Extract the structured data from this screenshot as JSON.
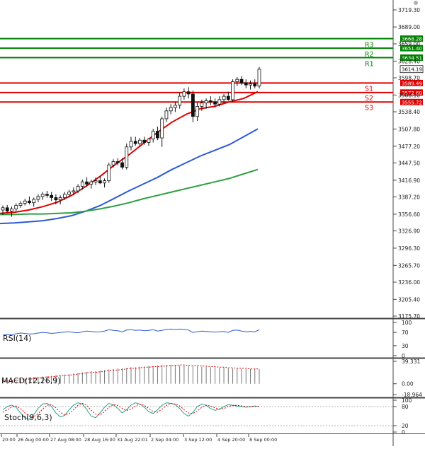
{
  "chart_data": [
    {
      "type": "candlestick",
      "panel": "price",
      "y_axis_ticks": [
        "3719.30",
        "3689.00",
        "3659.00",
        "3628.40",
        "3598.70",
        "3568.10",
        "3538.40",
        "3507.80",
        "3477.20",
        "3447.50",
        "3416.90",
        "3387.20",
        "3356.60",
        "3326.90",
        "3296.30",
        "3265.70",
        "3236.00",
        "3205.40",
        "3175.70"
      ],
      "ylim": [
        3175.7,
        3719.3
      ],
      "x_tick_labels": [
        "20:00",
        "26 Aug 00:00",
        "27 Aug 08:00",
        "28 Aug 16:00",
        "31 Aug 22:01",
        "2 Sep 04:00",
        "3 Sep 12:00",
        "4 Sep 20:00",
        "8 Sep 00:00"
      ],
      "current_price": "3614.19",
      "levels": [
        {
          "name": "R3",
          "value": 3668.28,
          "label": "3668.28",
          "color": "#008000"
        },
        {
          "name": "R2",
          "value": 3651.4,
          "label": "3651.40",
          "color": "#008000"
        },
        {
          "name": "R1",
          "value": 3634.51,
          "label": "3634.51",
          "color": "#008000"
        },
        {
          "name": "S1",
          "value": 3589.49,
          "label": "3589.49",
          "color": "#e00000"
        },
        {
          "name": "S2",
          "value": 3572.6,
          "label": "3572.60",
          "color": "#e00000"
        },
        {
          "name": "S3",
          "value": 3555.72,
          "label": "3555.72",
          "color": "#e00000"
        }
      ],
      "candles": [
        [
          3364,
          3372,
          3355,
          3368
        ],
        [
          3368,
          3373,
          3360,
          3362
        ],
        [
          3362,
          3370,
          3352,
          3366
        ],
        [
          3366,
          3376,
          3362,
          3372
        ],
        [
          3372,
          3380,
          3368,
          3376
        ],
        [
          3376,
          3384,
          3372,
          3380
        ],
        [
          3380,
          3388,
          3374,
          3377
        ],
        [
          3377,
          3386,
          3370,
          3383
        ],
        [
          3383,
          3392,
          3378,
          3388
        ],
        [
          3388,
          3396,
          3382,
          3392
        ],
        [
          3392,
          3398,
          3386,
          3390
        ],
        [
          3390,
          3396,
          3380,
          3386
        ],
        [
          3386,
          3392,
          3374,
          3382
        ],
        [
          3382,
          3390,
          3374,
          3386
        ],
        [
          3386,
          3396,
          3382,
          3392
        ],
        [
          3392,
          3400,
          3386,
          3396
        ],
        [
          3396,
          3404,
          3390,
          3398
        ],
        [
          3398,
          3410,
          3394,
          3406
        ],
        [
          3406,
          3418,
          3400,
          3414
        ],
        [
          3414,
          3422,
          3406,
          3410
        ],
        [
          3410,
          3418,
          3402,
          3414
        ],
        [
          3414,
          3422,
          3408,
          3416
        ],
        [
          3416,
          3424,
          3410,
          3412
        ],
        [
          3412,
          3420,
          3404,
          3416
        ],
        [
          3416,
          3448,
          3412,
          3444
        ],
        [
          3444,
          3454,
          3440,
          3450
        ],
        [
          3450,
          3456,
          3444,
          3448
        ],
        [
          3448,
          3456,
          3436,
          3440
        ],
        [
          3440,
          3482,
          3436,
          3476
        ],
        [
          3476,
          3494,
          3470,
          3486
        ],
        [
          3486,
          3494,
          3478,
          3482
        ],
        [
          3482,
          3492,
          3476,
          3488
        ],
        [
          3488,
          3494,
          3480,
          3484
        ],
        [
          3484,
          3492,
          3478,
          3490
        ],
        [
          3490,
          3508,
          3484,
          3504
        ],
        [
          3504,
          3512,
          3488,
          3492
        ],
        [
          3492,
          3530,
          3476,
          3526
        ],
        [
          3526,
          3546,
          3520,
          3540
        ],
        [
          3540,
          3552,
          3534,
          3546
        ],
        [
          3546,
          3556,
          3538,
          3550
        ],
        [
          3550,
          3572,
          3544,
          3566
        ],
        [
          3566,
          3580,
          3560,
          3574
        ],
        [
          3574,
          3582,
          3562,
          3570
        ],
        [
          3570,
          3576,
          3520,
          3530
        ],
        [
          3530,
          3556,
          3522,
          3548
        ],
        [
          3548,
          3560,
          3540,
          3554
        ],
        [
          3554,
          3562,
          3544,
          3558
        ],
        [
          3558,
          3566,
          3550,
          3556
        ],
        [
          3556,
          3562,
          3546,
          3552
        ],
        [
          3552,
          3566,
          3548,
          3560
        ],
        [
          3560,
          3570,
          3554,
          3566
        ],
        [
          3566,
          3574,
          3558,
          3560
        ],
        [
          3560,
          3596,
          3556,
          3592
        ],
        [
          3592,
          3600,
          3584,
          3596
        ],
        [
          3596,
          3602,
          3586,
          3590
        ],
        [
          3590,
          3596,
          3580,
          3586
        ],
        [
          3586,
          3594,
          3578,
          3588
        ],
        [
          3588,
          3596,
          3580,
          3584
        ],
        [
          3584,
          3618,
          3580,
          3614
        ]
      ],
      "ma_series": [
        {
          "name": "",
          "color": "#e00000",
          "values": [
            3358,
            3360,
            3364,
            3370,
            3378,
            3390,
            3406,
            3424,
            3444,
            3462,
            3482,
            3502,
            3520,
            3534,
            3544,
            3548,
            3556,
            3562,
            3574
          ]
        },
        {
          "name": "",
          "color": "#2d5ad6",
          "values": [
            3340,
            3341,
            3343,
            3345,
            3349,
            3354,
            3362,
            3372,
            3385,
            3398,
            3410,
            3422,
            3436,
            3448,
            3460,
            3470,
            3480,
            3494,
            3508
          ]
        },
        {
          "name": "",
          "color": "#2ea043",
          "values": [
            3356,
            3356,
            3357,
            3357,
            3358,
            3359,
            3362,
            3366,
            3371,
            3377,
            3384,
            3390,
            3396,
            3402,
            3408,
            3414,
            3420,
            3428,
            3436
          ]
        }
      ]
    },
    {
      "type": "line",
      "panel": "rsi",
      "title": "RSI(14)",
      "y_axis_ticks": [
        "100",
        "70",
        "30",
        "0"
      ],
      "ylim": [
        0,
        100
      ],
      "series": [
        {
          "name": "",
          "color": "#2d5ad6",
          "values": [
            62,
            64,
            63,
            66,
            68,
            67,
            65,
            66,
            68,
            70,
            69,
            67,
            68,
            70,
            71,
            72,
            70,
            69,
            72,
            74,
            73,
            71,
            72,
            74,
            78,
            76,
            75,
            72,
            77,
            78,
            76,
            77,
            75,
            76,
            78,
            74,
            76,
            79,
            80,
            79,
            80,
            79,
            77,
            70,
            72,
            74,
            73,
            72,
            71,
            72,
            73,
            70,
            76,
            77,
            74,
            72,
            73,
            72,
            78
          ]
        }
      ]
    },
    {
      "type": "bar",
      "panel": "macd",
      "title": "MACD(12,26,9)",
      "y_axis_ticks": [
        "39.331",
        "0.00",
        "-18.964"
      ],
      "ylim": [
        -18.964,
        39.331
      ],
      "histogram": [
        6,
        7,
        7,
        8,
        9,
        9,
        10,
        11,
        12,
        13,
        13,
        14,
        15,
        15,
        16,
        17,
        18,
        19,
        20,
        21,
        22,
        22,
        23,
        24,
        25,
        26,
        27,
        27,
        28,
        29,
        29,
        30,
        30,
        31,
        31,
        32,
        33,
        33,
        33,
        33,
        32,
        32,
        32,
        31,
        31,
        30,
        30,
        29,
        29,
        28,
        28,
        27,
        27,
        27,
        26,
        26,
        26,
        26,
        26
      ],
      "signal": [
        4,
        5,
        5,
        6,
        7,
        8,
        8,
        9,
        10,
        11,
        12,
        12,
        13,
        14,
        15,
        15,
        16,
        17,
        18,
        19,
        20,
        20,
        21,
        22,
        23,
        24,
        24,
        25,
        26,
        27,
        27,
        28,
        29,
        29,
        30,
        30,
        31,
        31,
        32,
        32,
        33,
        33,
        32,
        32,
        32,
        31,
        31,
        30,
        30,
        29,
        29,
        28,
        28,
        27,
        27,
        27,
        26,
        26,
        26
      ]
    },
    {
      "type": "line",
      "panel": "stochastic",
      "title": "Stoch(9,6,3)",
      "y_axis_ticks": [
        "100",
        "80",
        "20",
        "0"
      ],
      "ylim": [
        0,
        100
      ],
      "series": [
        {
          "name": "",
          "color": "#2a9d8f",
          "values": [
            70,
            80,
            85,
            78,
            60,
            45,
            40,
            55,
            75,
            88,
            90,
            80,
            60,
            48,
            52,
            70,
            85,
            92,
            88,
            70,
            50,
            45,
            60,
            78,
            90,
            86,
            74,
            60,
            70,
            85,
            92,
            88,
            78,
            64,
            58,
            70,
            84,
            92,
            90,
            86,
            74,
            58,
            50,
            62,
            80,
            88,
            84,
            74,
            68,
            72,
            80,
            86,
            84,
            82,
            80,
            78,
            80,
            82,
            80
          ]
        },
        {
          "name": "",
          "color": "#e00000",
          "values": [
            62,
            70,
            78,
            82,
            74,
            60,
            50,
            48,
            58,
            72,
            84,
            86,
            76,
            62,
            54,
            58,
            70,
            84,
            90,
            84,
            68,
            56,
            54,
            64,
            78,
            86,
            84,
            74,
            68,
            72,
            82,
            88,
            84,
            74,
            64,
            62,
            72,
            84,
            90,
            88,
            82,
            70,
            60,
            58,
            66,
            78,
            84,
            82,
            76,
            72,
            74,
            80,
            84,
            84,
            82,
            80,
            79,
            80,
            81
          ]
        }
      ]
    }
  ]
}
